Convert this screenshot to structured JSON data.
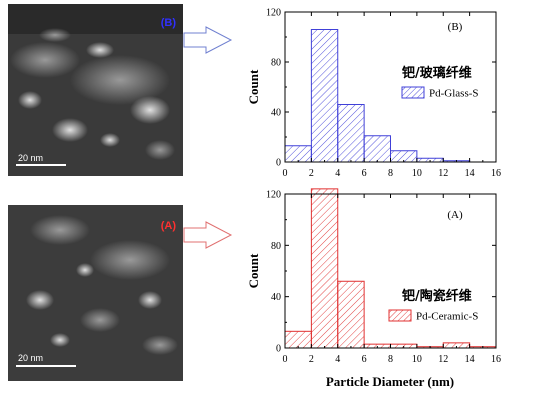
{
  "colors": {
    "blue": "#4040d8",
    "red": "#e03030",
    "tag_blue": "#3030ff",
    "tag_red": "#ff3030"
  },
  "micrographs": [
    {
      "tag": "(B)",
      "scale_label": "20 nm"
    },
    {
      "tag": "(A)",
      "scale_label": "20 nm"
    }
  ],
  "xlabel": "Particle Diameter (nm)",
  "chart_data": [
    {
      "type": "bar",
      "panel_label": "(B)",
      "cn_label": "钯/玻璃纤维",
      "legend": "Pd-Glass-S",
      "ylabel": "Count",
      "xlabel": "",
      "xlim": [
        0,
        16
      ],
      "ylim": [
        0,
        120
      ],
      "xticks": [
        0,
        2,
        4,
        6,
        8,
        10,
        12,
        14,
        16
      ],
      "yticks": [
        0,
        40,
        80,
        120
      ],
      "bins": [
        [
          0,
          2
        ],
        [
          2,
          4
        ],
        [
          4,
          6
        ],
        [
          6,
          8
        ],
        [
          8,
          10
        ],
        [
          10,
          12
        ],
        [
          12,
          14
        ]
      ],
      "values": [
        13,
        106,
        46,
        21,
        9,
        3,
        1
      ]
    },
    {
      "type": "bar",
      "panel_label": "(A)",
      "cn_label": "钯/陶瓷纤维",
      "legend": "Pd-Ceramic-S",
      "ylabel": "Count",
      "xlabel": "Particle Diameter (nm)",
      "xlim": [
        0,
        16
      ],
      "ylim": [
        0,
        120
      ],
      "xticks": [
        0,
        2,
        4,
        6,
        8,
        10,
        12,
        14,
        16
      ],
      "yticks": [
        0,
        40,
        80,
        120
      ],
      "bins": [
        [
          0,
          2
        ],
        [
          2,
          4
        ],
        [
          4,
          6
        ],
        [
          6,
          8
        ],
        [
          8,
          10
        ],
        [
          10,
          12
        ],
        [
          12,
          14
        ],
        [
          14,
          16
        ]
      ],
      "values": [
        13,
        124,
        52,
        3,
        3,
        1,
        4,
        1
      ]
    }
  ]
}
